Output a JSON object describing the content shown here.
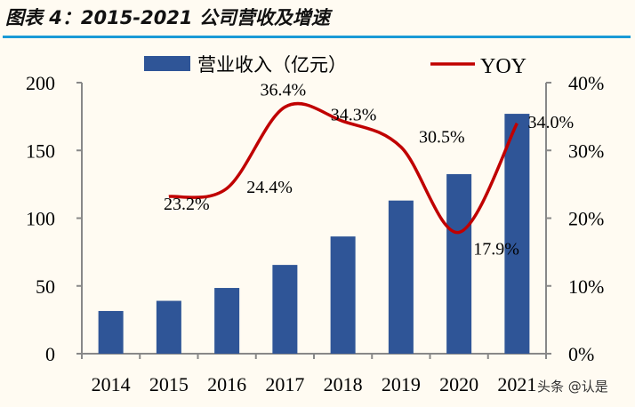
{
  "title": "图表 4：2015-2021 公司营收及增速",
  "watermark": "头条 @认是",
  "chart_data": {
    "type": "bar+line",
    "categories": [
      "2014",
      "2015",
      "2016",
      "2017",
      "2018",
      "2019",
      "2020",
      "2021"
    ],
    "series": [
      {
        "name": "营业收入（亿元）",
        "type": "bar",
        "axis": "left",
        "color": "#2f5597",
        "values": [
          31.5,
          39,
          48.5,
          65.5,
          86.5,
          113,
          132.5,
          177
        ]
      },
      {
        "name": "YOY",
        "type": "line",
        "axis": "right",
        "color": "#c00000",
        "values": [
          null,
          23.2,
          24.4,
          36.4,
          34.3,
          30.5,
          17.9,
          34.0
        ],
        "labels": [
          "",
          "23.2%",
          "24.4%",
          "36.4%",
          "34.3%",
          "30.5%",
          "17.9%",
          "34.0%"
        ]
      }
    ],
    "left_axis": {
      "ylim": [
        0,
        200
      ],
      "ticks": [
        "0",
        "50",
        "100",
        "150",
        "200"
      ]
    },
    "right_axis": {
      "ylim": [
        0,
        40
      ],
      "ticks": [
        "0%",
        "10%",
        "20%",
        "30%",
        "40%"
      ]
    },
    "legend": "top",
    "grid": false
  }
}
